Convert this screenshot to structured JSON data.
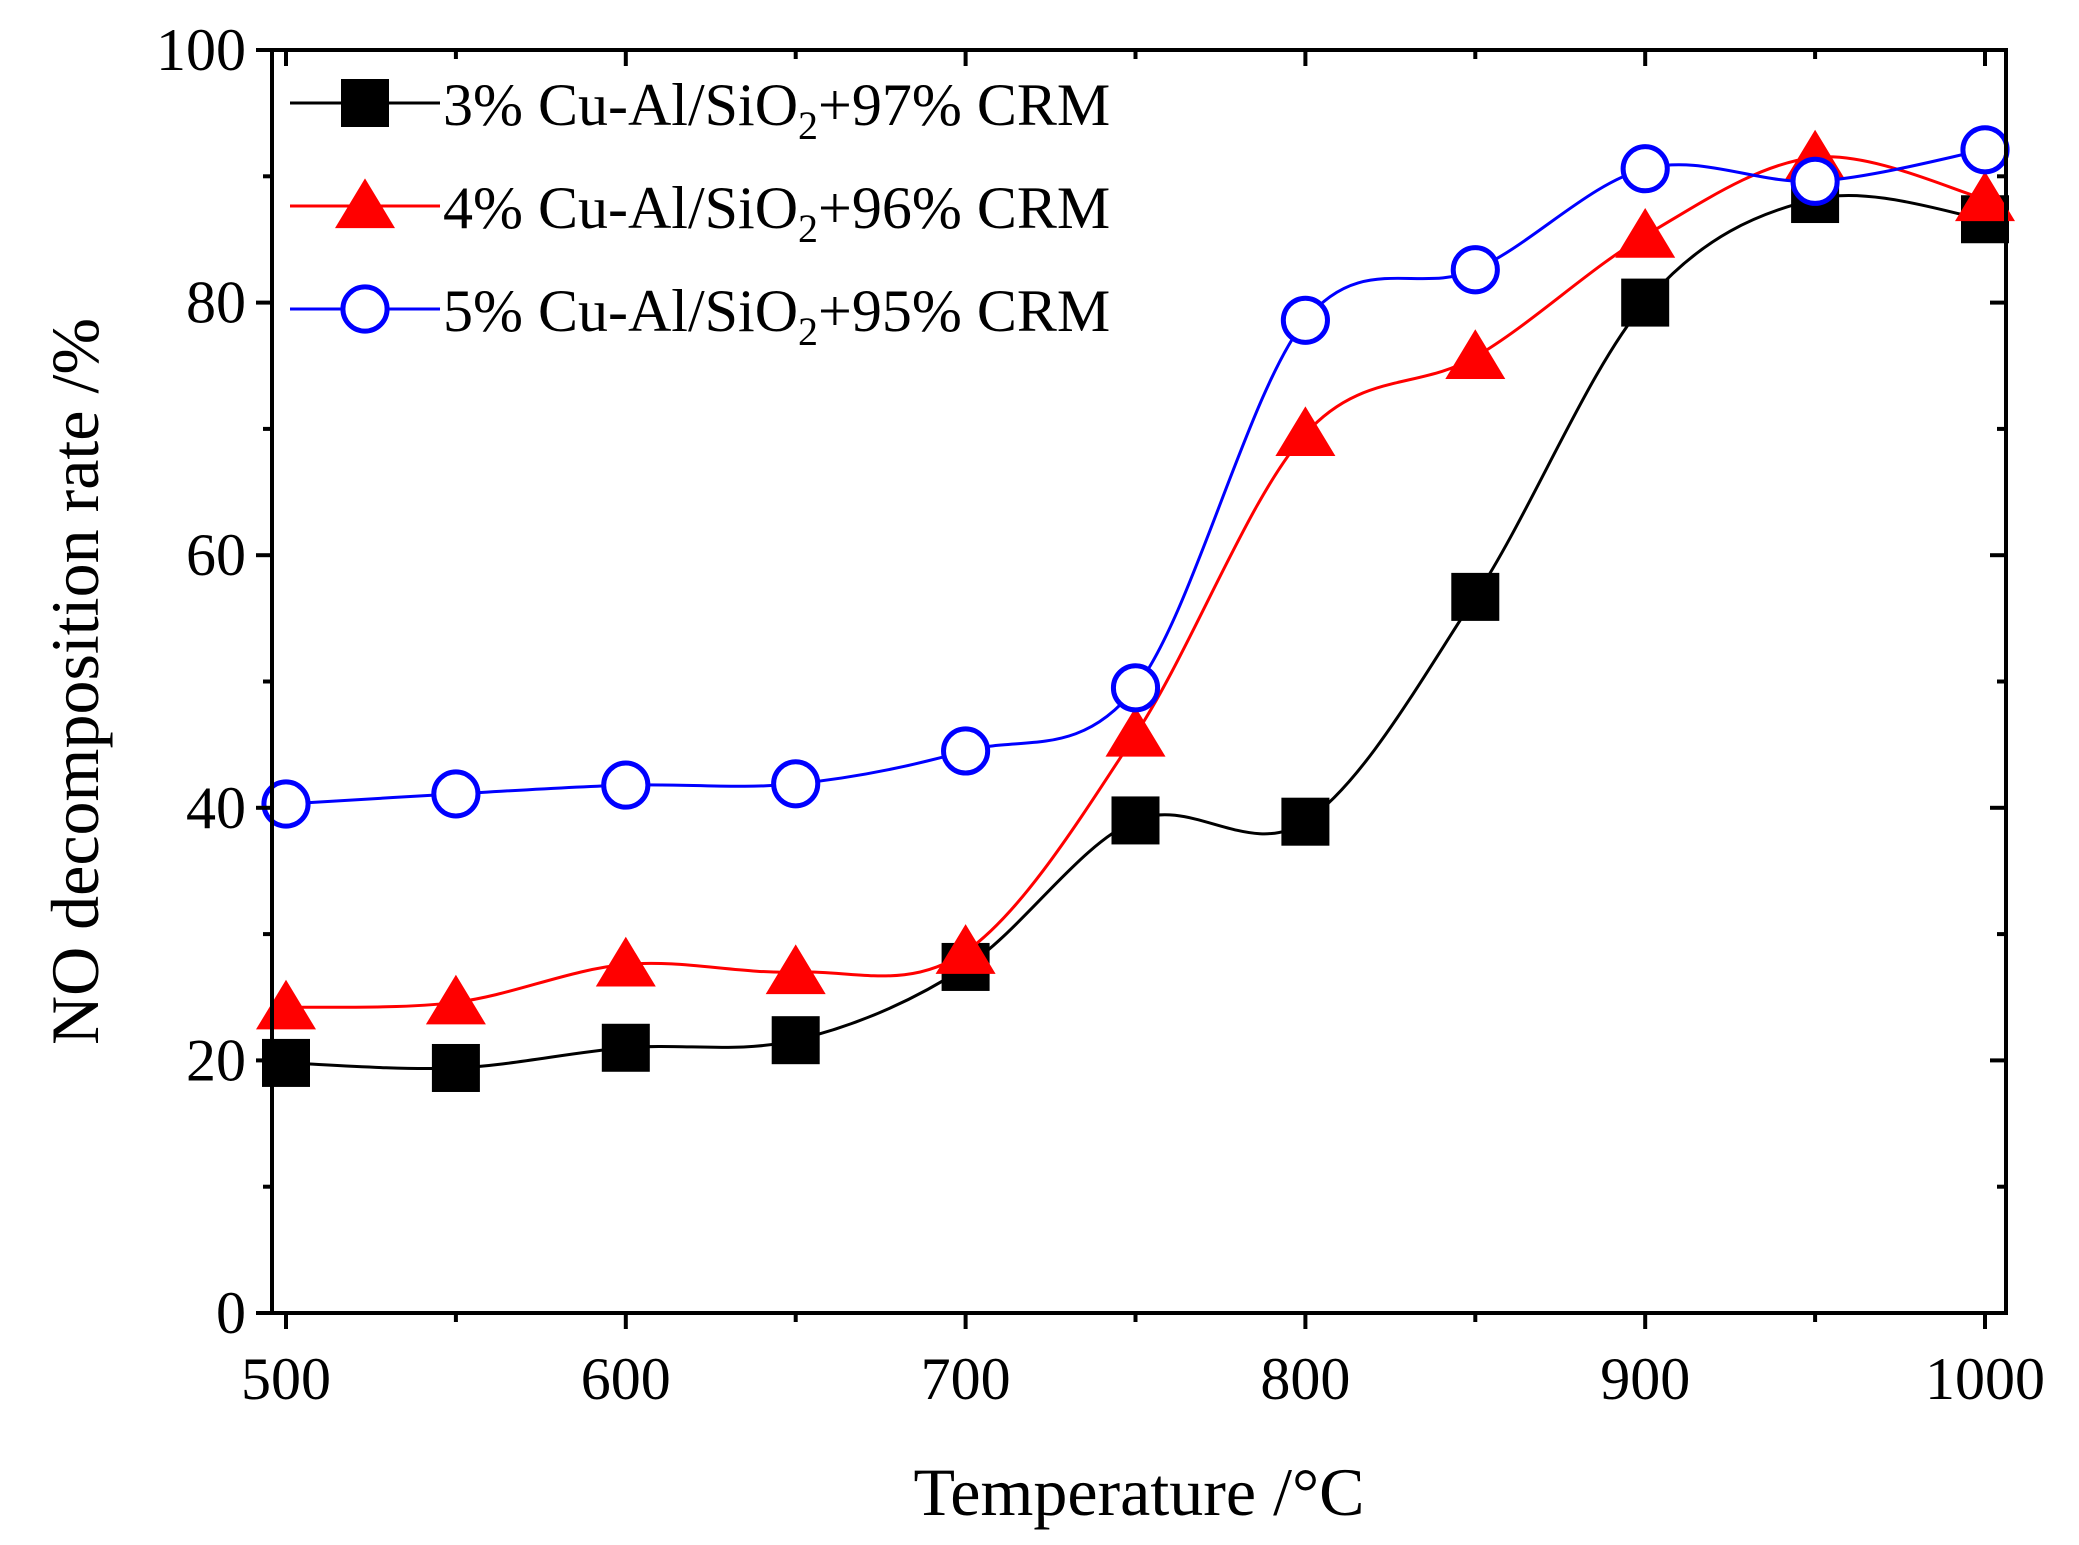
{
  "chart_data": {
    "type": "line",
    "title": "",
    "xlabel": "Temperature /°C",
    "ylabel": "NO decomposition rate /%",
    "xlim": [
      495,
      1005
    ],
    "ylim": [
      0,
      100
    ],
    "x_ticks": [
      500,
      600,
      700,
      800,
      900,
      1000
    ],
    "y_ticks": [
      0,
      20,
      40,
      60,
      80,
      100
    ],
    "legend_position": "top-left",
    "series": [
      {
        "name": "3% Cu-Al/SiO2+97% CRM",
        "legend_parts": [
          "3% Cu-Al/SiO",
          "2",
          "+97% CRM"
        ],
        "color": "#000000",
        "marker": "square",
        "x": [
          500,
          550,
          600,
          650,
          700,
          750,
          800,
          850,
          900,
          950,
          1000
        ],
        "y": [
          19.8,
          19.4,
          21.0,
          21.6,
          27.4,
          39.0,
          38.9,
          56.7,
          80.0,
          88.2,
          86.6
        ]
      },
      {
        "name": "4% Cu-Al/SiO2+96% CRM",
        "legend_parts": [
          "4% Cu-Al/SiO",
          "2",
          "+96% CRM"
        ],
        "color": "#ff0000",
        "marker": "triangle",
        "x": [
          500,
          550,
          600,
          650,
          700,
          750,
          800,
          850,
          900,
          950,
          1000
        ],
        "y": [
          24.2,
          24.6,
          27.6,
          27.0,
          28.6,
          45.8,
          69.6,
          75.7,
          85.3,
          91.5,
          88.2
        ]
      },
      {
        "name": "5% Cu-Al/SiO2+95% CRM",
        "legend_parts": [
          "5% Cu-Al/SiO",
          "2",
          "+95% CRM"
        ],
        "color": "#0000ff",
        "marker": "circle",
        "x": [
          500,
          550,
          600,
          650,
          700,
          750,
          800,
          850,
          900,
          950,
          1000
        ],
        "y": [
          40.3,
          41.1,
          41.8,
          41.9,
          44.5,
          49.5,
          78.6,
          82.6,
          90.6,
          89.6,
          92.1
        ]
      }
    ]
  }
}
